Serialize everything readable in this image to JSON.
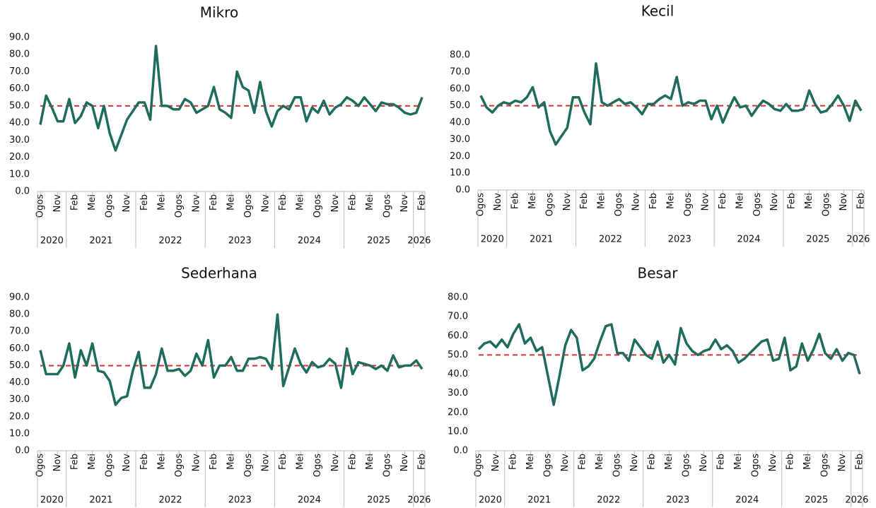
{
  "chart_data": [
    {
      "type": "line",
      "title": "Mikro",
      "color": "#1f6b5c",
      "categories": [
        "Ogos",
        null,
        null,
        "Nov",
        null,
        null,
        "Feb",
        null,
        null,
        "Mei",
        null,
        null,
        "Ogos",
        null,
        null,
        "Nov",
        null,
        null,
        "Feb",
        null,
        null,
        "Mei",
        null,
        null,
        "Ogos",
        null,
        null,
        "Nov",
        null,
        null,
        "Feb",
        null,
        null,
        "Mei",
        null,
        null,
        "Ogos",
        null,
        null,
        "Nov",
        null,
        null,
        "Feb",
        null,
        null,
        "Mei",
        null,
        null,
        "Ogos",
        null,
        null,
        "Nov",
        null,
        null,
        "Feb",
        null,
        null,
        "Mei",
        null,
        null,
        "Ogos",
        null,
        null,
        "Nov",
        null,
        null,
        "Feb"
      ],
      "year_groups": [
        {
          "label": "2020",
          "months": 5
        },
        {
          "label": "2021",
          "months": 12
        },
        {
          "label": "2022",
          "months": 12
        },
        {
          "label": "2023",
          "months": 12
        },
        {
          "label": "2024",
          "months": 12
        },
        {
          "label": "2025",
          "months": 12
        },
        {
          "label": "2026",
          "months": 2
        }
      ],
      "values": [
        39,
        56,
        49,
        41,
        41,
        54,
        40,
        44,
        52,
        50,
        37,
        50,
        34,
        24,
        33,
        42,
        47,
        52,
        52,
        42,
        85,
        50,
        50,
        48,
        48,
        54,
        52,
        46,
        48,
        50,
        61,
        48,
        46,
        43,
        70,
        61,
        59,
        46,
        64,
        47,
        38,
        47,
        50,
        48,
        55,
        55,
        41,
        49,
        46,
        53,
        45,
        49,
        51,
        55,
        53,
        50,
        55,
        51,
        47,
        52,
        51,
        51,
        49,
        46,
        45,
        46,
        55
      ],
      "reference_line": {
        "value": 50,
        "color": "#d9302c"
      },
      "ylim": [
        0,
        90
      ],
      "yticks": [
        {
          "value": 0,
          "label": "0.0"
        },
        {
          "value": 10,
          "label": "10.0"
        },
        {
          "value": 20,
          "label": "20.0"
        },
        {
          "value": 30,
          "label": "30.0"
        },
        {
          "value": 40,
          "label": "40.0"
        },
        {
          "value": 50,
          "label": "50.0"
        },
        {
          "value": 60,
          "label": "60.0"
        },
        {
          "value": 70,
          "label": "70.0"
        },
        {
          "value": 80,
          "label": "80.0"
        },
        {
          "value": 90,
          "label": "90.0"
        }
      ]
    },
    {
      "type": "line",
      "title": "Kecil",
      "color": "#1f6b5c",
      "categories": [
        "Ogos",
        null,
        null,
        "Nov",
        null,
        null,
        "Feb",
        null,
        null,
        "Mei",
        null,
        null,
        "Ogos",
        null,
        null,
        "Nov",
        null,
        null,
        "Feb",
        null,
        null,
        "Mei",
        null,
        null,
        "Ogos",
        null,
        null,
        "Nov",
        null,
        null,
        "Feb",
        null,
        null,
        "Mei",
        null,
        null,
        "Ogos",
        null,
        null,
        "Nov",
        null,
        null,
        "Feb",
        null,
        null,
        "Mei",
        null,
        null,
        "Ogos",
        null,
        null,
        "Nov",
        null,
        null,
        "Feb",
        null,
        null,
        "Mei",
        null,
        null,
        "Ogos",
        null,
        null,
        "Nov",
        null,
        null,
        "Feb"
      ],
      "year_groups": [
        {
          "label": "2020",
          "months": 5
        },
        {
          "label": "2021",
          "months": 12
        },
        {
          "label": "2022",
          "months": 12
        },
        {
          "label": "2023",
          "months": 12
        },
        {
          "label": "2024",
          "months": 12
        },
        {
          "label": "2025",
          "months": 12
        },
        {
          "label": "2026",
          "months": 2
        }
      ],
      "values": [
        56,
        49,
        46,
        50,
        52,
        51,
        53,
        52,
        55,
        61,
        49,
        52,
        35,
        27,
        32,
        37,
        55,
        55,
        46,
        39,
        75,
        52,
        50,
        52,
        54,
        51,
        52,
        49,
        45,
        51,
        51,
        54,
        56,
        54,
        67,
        50,
        52,
        51,
        53,
        53,
        42,
        50,
        40,
        48,
        55,
        49,
        50,
        44,
        49,
        53,
        51,
        48,
        47,
        51,
        47,
        47,
        48,
        59,
        51,
        46,
        47,
        51,
        56,
        50,
        41,
        53,
        47
      ],
      "reference_line": {
        "value": 50,
        "color": "#d9302c"
      },
      "ylim": [
        0,
        80
      ],
      "yticks": [
        {
          "value": 0,
          "label": "0.0"
        },
        {
          "value": 10,
          "label": "10.0"
        },
        {
          "value": 20,
          "label": "20.0"
        },
        {
          "value": 30,
          "label": "30.0"
        },
        {
          "value": 40,
          "label": "40.0"
        },
        {
          "value": 50,
          "label": "50.0"
        },
        {
          "value": 60,
          "label": "60.0"
        },
        {
          "value": 70,
          "label": "70.0"
        },
        {
          "value": 80,
          "label": "80.0"
        }
      ]
    },
    {
      "type": "line",
      "title": "Sederhana",
      "color": "#1f6b5c",
      "categories": [
        "Ogos",
        null,
        null,
        "Nov",
        null,
        null,
        "Feb",
        null,
        null,
        "Mei",
        null,
        null,
        "Ogos",
        null,
        null,
        "Nov",
        null,
        null,
        "Feb",
        null,
        null,
        "Mei",
        null,
        null,
        "Ogos",
        null,
        null,
        "Nov",
        null,
        null,
        "Feb",
        null,
        null,
        "Mei",
        null,
        null,
        "Ogos",
        null,
        null,
        "Nov",
        null,
        null,
        "Feb",
        null,
        null,
        "Mei",
        null,
        null,
        "Ogos",
        null,
        null,
        "Nov",
        null,
        null,
        "Feb",
        null,
        null,
        "Mei",
        null,
        null,
        "Ogos",
        null,
        null,
        "Nov",
        null,
        null,
        "Feb"
      ],
      "year_groups": [
        {
          "label": "2020",
          "months": 5
        },
        {
          "label": "2021",
          "months": 12
        },
        {
          "label": "2022",
          "months": 12
        },
        {
          "label": "2023",
          "months": 12
        },
        {
          "label": "2024",
          "months": 12
        },
        {
          "label": "2025",
          "months": 12
        },
        {
          "label": "2026",
          "months": 2
        }
      ],
      "values": [
        59,
        45,
        45,
        45,
        50,
        63,
        43,
        59,
        50,
        63,
        47,
        46,
        41,
        27,
        31,
        32,
        47,
        58,
        37,
        37,
        45,
        60,
        47,
        47,
        48,
        44,
        47,
        57,
        50,
        65,
        43,
        50,
        50,
        55,
        47,
        47,
        54,
        54,
        55,
        54,
        48,
        80,
        38,
        49,
        60,
        51,
        46,
        52,
        49,
        50,
        54,
        51,
        37,
        60,
        45,
        52,
        51,
        50,
        48,
        50,
        47,
        56,
        49,
        50,
        50,
        53,
        48
      ],
      "reference_line": {
        "value": 50,
        "color": "#d9302c"
      },
      "ylim": [
        0,
        90
      ],
      "yticks": [
        {
          "value": 0,
          "label": "0.0"
        },
        {
          "value": 10,
          "label": "10.0"
        },
        {
          "value": 20,
          "label": "20.0"
        },
        {
          "value": 30,
          "label": "30.0"
        },
        {
          "value": 40,
          "label": "40.0"
        },
        {
          "value": 50,
          "label": "50.0"
        },
        {
          "value": 60,
          "label": "60.0"
        },
        {
          "value": 70,
          "label": "70.0"
        },
        {
          "value": 80,
          "label": "80.0"
        },
        {
          "value": 90,
          "label": "90.0"
        }
      ]
    },
    {
      "type": "line",
      "title": "Besar",
      "color": "#1f6b5c",
      "categories": [
        "Ogos",
        null,
        null,
        "Nov",
        null,
        null,
        "Feb",
        null,
        null,
        "Mei",
        null,
        null,
        "Ogos",
        null,
        null,
        "Nov",
        null,
        null,
        "Feb",
        null,
        null,
        "Mei",
        null,
        null,
        "Ogos",
        null,
        null,
        "Nov",
        null,
        null,
        "Feb",
        null,
        null,
        "Mei",
        null,
        null,
        "Ogos",
        null,
        null,
        "Nov",
        null,
        null,
        "Feb",
        null,
        null,
        "Mei",
        null,
        null,
        "Ogos",
        null,
        null,
        "Nov",
        null,
        null,
        "Feb",
        null,
        null,
        "Mei",
        null,
        null,
        "Ogos",
        null,
        null,
        "Nov",
        null,
        null,
        "Feb"
      ],
      "year_groups": [
        {
          "label": "2020",
          "months": 5
        },
        {
          "label": "2021",
          "months": 12
        },
        {
          "label": "2022",
          "months": 12
        },
        {
          "label": "2023",
          "months": 12
        },
        {
          "label": "2024",
          "months": 12
        },
        {
          "label": "2025",
          "months": 12
        },
        {
          "label": "2026",
          "months": 2
        }
      ],
      "values": [
        53,
        56,
        57,
        54,
        58,
        54,
        61,
        66,
        56,
        59,
        52,
        54,
        39,
        24,
        39,
        55,
        63,
        59,
        42,
        44,
        48,
        57,
        65,
        66,
        51,
        51,
        47,
        58,
        54,
        50,
        48,
        57,
        46,
        50,
        45,
        64,
        56,
        52,
        50,
        52,
        53,
        58,
        53,
        55,
        52,
        46,
        48,
        51,
        54,
        57,
        58,
        47,
        48,
        59,
        42,
        44,
        56,
        47,
        53,
        61,
        51,
        48,
        53,
        47,
        51,
        50,
        40
      ],
      "reference_line": {
        "value": 50,
        "color": "#d9302c"
      },
      "ylim": [
        0,
        80
      ],
      "yticks": [
        {
          "value": 0,
          "label": "0.0"
        },
        {
          "value": 10,
          "label": "10.0"
        },
        {
          "value": 20,
          "label": "20.0"
        },
        {
          "value": 30,
          "label": "30.0"
        },
        {
          "value": 40,
          "label": "40.0"
        },
        {
          "value": 50,
          "label": "50.0"
        },
        {
          "value": 60,
          "label": "60.0"
        },
        {
          "value": 70,
          "label": "70.0"
        },
        {
          "value": 80,
          "label": "80.0"
        }
      ]
    }
  ]
}
